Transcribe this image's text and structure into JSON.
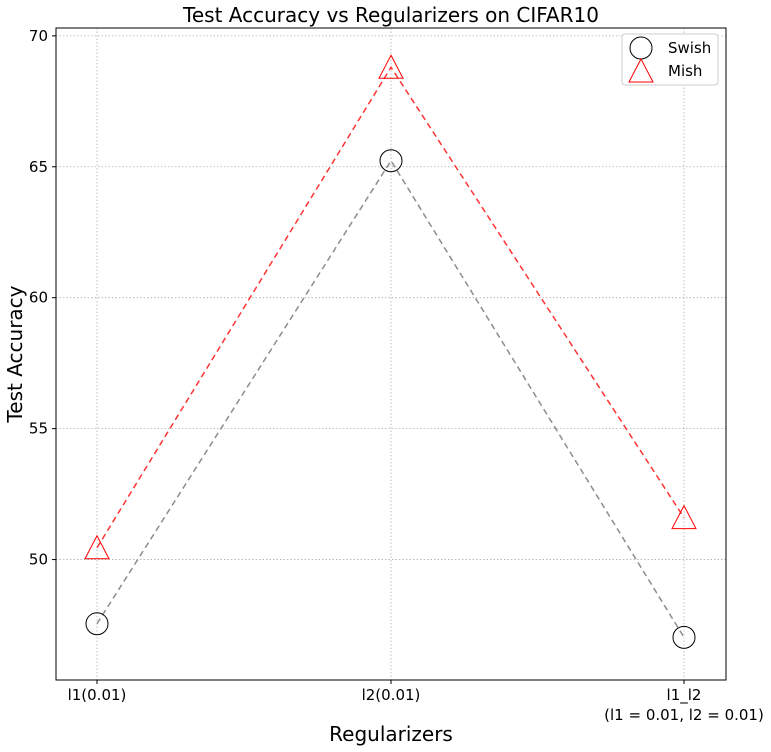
{
  "chart_data": {
    "type": "line",
    "title": "Test Accuracy vs Regularizers on CIFAR10",
    "xlabel": "Regularizers",
    "ylabel": "Test Accuracy",
    "categories": [
      [
        "l1(0.01)"
      ],
      [
        "l2(0.01)"
      ],
      [
        "l1_l2",
        "(l1 = 0.01, l2 = 0.01)"
      ]
    ],
    "ylim": [
      45.4,
      70.3
    ],
    "yticks": [
      50,
      55,
      60,
      65,
      70
    ],
    "grid": true,
    "legend_position": "top-right",
    "series": [
      {
        "name": "Swish",
        "values": [
          47.55,
          65.23,
          47.03
        ],
        "marker": "circle",
        "marker_color": "#000000",
        "line_color": "#8c8c8c"
      },
      {
        "name": "Mish",
        "values": [
          50.45,
          68.8,
          51.6
        ],
        "marker": "triangle",
        "marker_color": "#ff0000",
        "line_color": "#ff3333"
      }
    ]
  }
}
